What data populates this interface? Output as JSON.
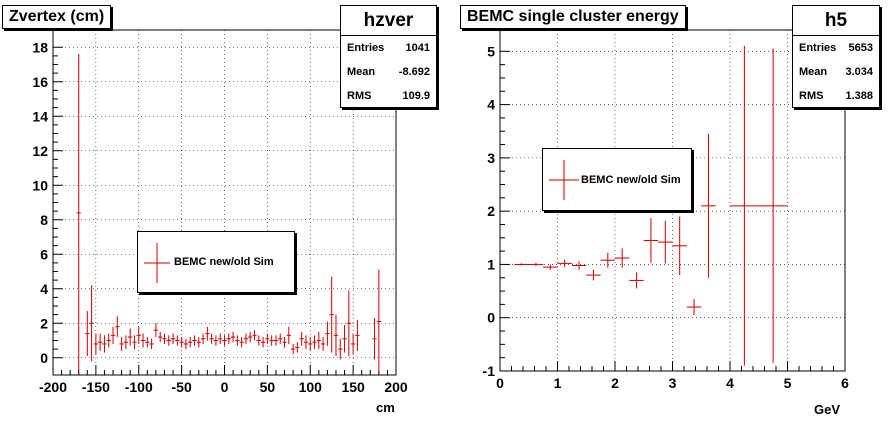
{
  "colors": {
    "series": "#cc0000",
    "axis": "#000000",
    "grid": "#000000"
  },
  "chart_data": [
    {
      "type": "scatter",
      "title": "Zvertex (cm)",
      "xlabel": "cm",
      "ylabel": "",
      "xlim": [
        -200,
        200
      ],
      "ylim": [
        -1.0,
        19.0
      ],
      "xticks": [
        -200,
        -150,
        -100,
        -50,
        0,
        50,
        100,
        150,
        200
      ],
      "yticks": [
        0,
        2,
        4,
        6,
        8,
        10,
        12,
        14,
        16,
        18
      ],
      "grid": true,
      "stats": {
        "name": "hzver",
        "rows": [
          {
            "label": "Entries",
            "value": "1041"
          },
          {
            "label": "Mean",
            "value": "-8.692"
          },
          {
            "label": "RMS",
            "value": "109.9"
          }
        ]
      },
      "legend": {
        "label": "BEMC new/old Sim",
        "placement": "center-left"
      },
      "bin_width": 5,
      "series": [
        {
          "name": "BEMC new/old Sim",
          "x": [
            -170,
            -160,
            -155,
            -150,
            -145,
            -140,
            -135,
            -130,
            -125,
            -120,
            -115,
            -110,
            -105,
            -100,
            -95,
            -90,
            -85,
            -80,
            -75,
            -70,
            -65,
            -60,
            -55,
            -50,
            -45,
            -40,
            -35,
            -30,
            -25,
            -20,
            -15,
            -10,
            -5,
            0,
            5,
            10,
            15,
            20,
            25,
            30,
            35,
            40,
            45,
            50,
            55,
            60,
            65,
            70,
            75,
            80,
            85,
            90,
            95,
            100,
            105,
            110,
            115,
            120,
            125,
            130,
            135,
            140,
            145,
            150,
            155,
            175,
            180
          ],
          "y": [
            8.4,
            1.4,
            2.0,
            0.8,
            0.9,
            0.8,
            1.0,
            1.3,
            1.8,
            0.8,
            0.9,
            1.2,
            0.9,
            1.3,
            1.0,
            0.9,
            0.8,
            1.6,
            1.2,
            1.1,
            1.0,
            1.1,
            1.0,
            0.9,
            0.8,
            0.9,
            1.0,
            0.9,
            1.1,
            1.4,
            1.1,
            1.0,
            1.1,
            1.0,
            1.1,
            1.2,
            1.0,
            0.9,
            1.1,
            1.2,
            1.3,
            1.0,
            0.9,
            1.1,
            1.0,
            1.0,
            1.1,
            0.9,
            1.3,
            0.5,
            0.6,
            1.1,
            0.9,
            0.8,
            0.9,
            1.0,
            0.8,
            1.4,
            2.5,
            1.3,
            0.5,
            1.1,
            2.0,
            0.8,
            1.3,
            1.1,
            2.1
          ],
          "err": [
            9.2,
            1.3,
            2.2,
            0.6,
            0.5,
            0.5,
            0.4,
            0.5,
            0.6,
            0.4,
            0.4,
            0.5,
            0.4,
            0.5,
            0.4,
            0.3,
            0.3,
            0.4,
            0.3,
            0.3,
            0.3,
            0.3,
            0.3,
            0.3,
            0.3,
            0.3,
            0.3,
            0.3,
            0.3,
            0.4,
            0.3,
            0.3,
            0.3,
            0.3,
            0.3,
            0.3,
            0.3,
            0.3,
            0.3,
            0.3,
            0.3,
            0.3,
            0.3,
            0.3,
            0.3,
            0.3,
            0.3,
            0.3,
            0.5,
            0.3,
            0.3,
            0.4,
            0.4,
            0.4,
            0.4,
            0.5,
            0.4,
            0.7,
            2.2,
            1.2,
            0.6,
            0.8,
            1.9,
            0.6,
            0.9,
            1.2,
            3.0
          ]
        }
      ]
    },
    {
      "type": "scatter",
      "title": "BEMC single cluster energy",
      "xlabel": "GeV",
      "ylabel": "",
      "xlim": [
        0,
        6
      ],
      "ylim": [
        -1.0,
        5.4
      ],
      "xticks": [
        0,
        1,
        2,
        3,
        4,
        5,
        6
      ],
      "yticks": [
        -1,
        0,
        1,
        2,
        3,
        4,
        5
      ],
      "grid": true,
      "stats": {
        "name": "h5",
        "rows": [
          {
            "label": "Entries",
            "value": "5653"
          },
          {
            "label": "Mean",
            "value": "3.034"
          },
          {
            "label": "RMS",
            "value": "1.388"
          }
        ]
      },
      "legend": {
        "label": "BEMC new/old Sim",
        "placement": "center-left"
      },
      "series": [
        {
          "name": "BEMC new/old Sim",
          "x": [
            0.375,
            0.625,
            0.875,
            1.125,
            1.375,
            1.625,
            1.875,
            2.125,
            2.375,
            2.625,
            2.875,
            3.125,
            3.375,
            3.625,
            4.25,
            4.75
          ],
          "xerr": [
            0.125,
            0.125,
            0.125,
            0.125,
            0.125,
            0.125,
            0.125,
            0.125,
            0.125,
            0.125,
            0.125,
            0.125,
            0.125,
            0.125,
            0.25,
            0.25
          ],
          "y": [
            1.0,
            1.0,
            0.95,
            1.02,
            0.98,
            0.8,
            1.08,
            1.12,
            0.7,
            1.45,
            1.42,
            1.35,
            0.2,
            2.1,
            2.1,
            2.1
          ],
          "err": [
            0.02,
            0.03,
            0.05,
            0.07,
            0.08,
            0.1,
            0.14,
            0.18,
            0.15,
            0.42,
            0.4,
            0.55,
            0.15,
            1.35,
            3.0,
            2.95
          ]
        }
      ]
    }
  ]
}
